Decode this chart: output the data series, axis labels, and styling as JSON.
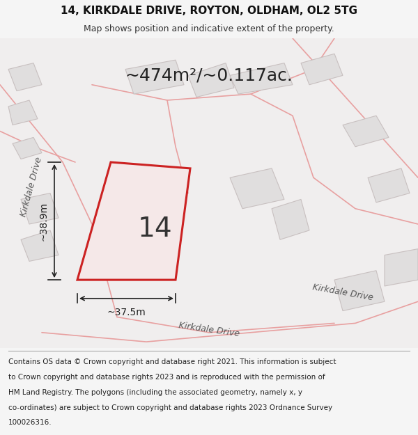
{
  "title_line1": "14, KIRKDALE DRIVE, ROYTON, OLDHAM, OL2 5TG",
  "title_line2": "Map shows position and indicative extent of the property.",
  "area_text": "~474m²/~0.117ac.",
  "number_label": "14",
  "dim_width": "~37.5m",
  "dim_height": "~38.9m",
  "road_label_left": "Kirkdale Drive",
  "road_label_bottom": "Kirkdale Drive",
  "road_label_right": "Kirkdale Drive",
  "footer_lines": [
    "Contains OS data © Crown copyright and database right 2021. This information is subject",
    "to Crown copyright and database rights 2023 and is reproduced with the permission of",
    "HM Land Registry. The polygons (including the associated geometry, namely x, y",
    "co-ordinates) are subject to Crown copyright and database rights 2023 Ordnance Survey",
    "100026316."
  ],
  "bg_color": "#f5f5f5",
  "map_bg": "#f0eeee",
  "highlight_color": "#cc2222",
  "road_stroke": "#e8a0a0",
  "building_fill": "#e0dede",
  "building_stroke": "#c8c0c0",
  "title_fontsize": 11,
  "subtitle_fontsize": 9,
  "area_fontsize": 18,
  "number_fontsize": 28,
  "dim_fontsize": 10,
  "road_fontsize": 9,
  "footer_fontsize": 7.5
}
